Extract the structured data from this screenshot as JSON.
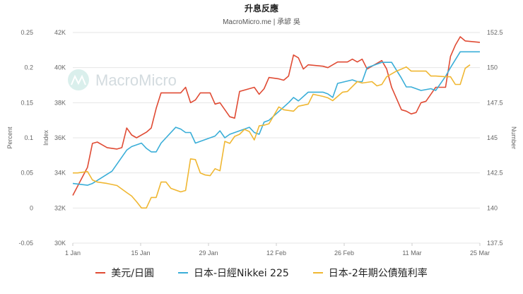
{
  "chart_data": {
    "type": "line",
    "title": "升息反應",
    "subtitle": "MacroMicro.me | 承諺 吳",
    "watermark": "MacroMicro",
    "legend_position": "bottom",
    "grid": true,
    "x_ticks": [
      "1 Jan",
      "15 Jan",
      "29 Jan",
      "12 Feb",
      "26 Feb",
      "11 Mar",
      "25 Mar"
    ],
    "axes": {
      "percent": {
        "label": "Percent",
        "ticks": [
          "-0.05",
          "0",
          "0.05",
          "0.1",
          "0.15",
          "0.2",
          "0.25"
        ],
        "range": [
          -0.05,
          0.25
        ]
      },
      "index": {
        "label": "Index",
        "ticks": [
          "30K",
          "32K",
          "34K",
          "36K",
          "38K",
          "40K",
          "42K"
        ],
        "range": [
          30000,
          42000
        ]
      },
      "number": {
        "label": "Number",
        "ticks": [
          "137.5",
          "140",
          "142.5",
          "145",
          "147.5",
          "150",
          "152.5"
        ],
        "range": [
          137.5,
          152.5
        ]
      }
    },
    "series": [
      {
        "name": "美元/日圓",
        "axis": "number",
        "color": "#e04b34",
        "points": [
          [
            "2021-01-01",
            140.9
          ],
          [
            "2021-01-04",
            142.9
          ],
          [
            "2021-01-05",
            144.6
          ],
          [
            "2021-01-06",
            144.7
          ],
          [
            "2021-01-07",
            144.5
          ],
          [
            "2021-01-08",
            144.3
          ],
          [
            "2021-01-10",
            144.2
          ],
          [
            "2021-01-11",
            144.3
          ],
          [
            "2021-01-12",
            145.7
          ],
          [
            "2021-01-13",
            145.2
          ],
          [
            "2021-01-14",
            145.0
          ],
          [
            "2021-01-16",
            145.4
          ],
          [
            "2021-01-17",
            145.7
          ],
          [
            "2021-01-18",
            147.1
          ],
          [
            "2021-01-19",
            148.2
          ],
          [
            "2021-01-23",
            148.2
          ],
          [
            "2021-01-24",
            148.6
          ],
          [
            "2021-01-25",
            147.5
          ],
          [
            "2021-01-26",
            147.7
          ],
          [
            "2021-01-27",
            148.2
          ],
          [
            "2021-01-29",
            148.2
          ],
          [
            "2021-01-30",
            147.4
          ],
          [
            "2021-01-31",
            147.5
          ],
          [
            "2021-02-02",
            146.5
          ],
          [
            "2021-02-03",
            146.4
          ],
          [
            "2021-02-04",
            148.3
          ],
          [
            "2021-02-06",
            148.5
          ],
          [
            "2021-02-07",
            148.6
          ],
          [
            "2021-02-08",
            148.1
          ],
          [
            "2021-02-09",
            148.5
          ],
          [
            "2021-02-10",
            149.3
          ],
          [
            "2021-02-12",
            149.2
          ],
          [
            "2021-02-13",
            149.1
          ],
          [
            "2021-02-14",
            149.4
          ],
          [
            "2021-02-15",
            150.9
          ],
          [
            "2021-02-16",
            150.7
          ],
          [
            "2021-02-17",
            149.9
          ],
          [
            "2021-02-18",
            150.2
          ],
          [
            "2021-02-21",
            150.1
          ],
          [
            "2021-02-22",
            150.0
          ],
          [
            "2021-02-24",
            150.4
          ],
          [
            "2021-02-26",
            150.4
          ],
          [
            "2021-02-27",
            150.6
          ],
          [
            "2021-02-28",
            150.4
          ],
          [
            "2021-03-01",
            150.6
          ],
          [
            "2021-03-02",
            149.9
          ],
          [
            "2021-03-05",
            150.5
          ],
          [
            "2021-03-06",
            149.9
          ],
          [
            "2021-03-07",
            148.6
          ],
          [
            "2021-03-09",
            147.0
          ],
          [
            "2021-03-10",
            146.9
          ],
          [
            "2021-03-11",
            146.7
          ],
          [
            "2021-03-12",
            146.8
          ],
          [
            "2021-03-13",
            147.5
          ],
          [
            "2021-03-14",
            147.6
          ],
          [
            "2021-03-15",
            148.1
          ],
          [
            "2021-03-16",
            148.6
          ],
          [
            "2021-03-18",
            148.6
          ],
          [
            "2021-03-19",
            150.8
          ],
          [
            "2021-03-20",
            151.6
          ],
          [
            "2021-03-21",
            152.2
          ],
          [
            "2021-03-22",
            151.9
          ],
          [
            "2021-03-25",
            151.8
          ]
        ]
      },
      {
        "name": "日本-日經Nikkei 225",
        "axis": "index",
        "color": "#3aaed8",
        "points": [
          [
            "2021-01-01",
            33.4
          ],
          [
            "2021-01-04",
            33.3
          ],
          [
            "2021-01-05",
            33.4
          ],
          [
            "2021-01-09",
            34.1
          ],
          [
            "2021-01-12",
            35.3
          ],
          [
            "2021-01-13",
            35.5
          ],
          [
            "2021-01-15",
            35.7
          ],
          [
            "2021-01-16",
            35.4
          ],
          [
            "2021-01-17",
            35.2
          ],
          [
            "2021-01-18",
            35.2
          ],
          [
            "2021-01-19",
            35.7
          ],
          [
            "2021-01-22",
            36.6
          ],
          [
            "2021-01-23",
            36.5
          ],
          [
            "2021-01-24",
            36.3
          ],
          [
            "2021-01-25",
            36.3
          ],
          [
            "2021-01-26",
            35.7
          ],
          [
            "2021-01-29",
            36.0
          ],
          [
            "2021-01-30",
            36.1
          ],
          [
            "2021-01-31",
            36.4
          ],
          [
            "2021-02-01",
            36.0
          ],
          [
            "2021-02-02",
            36.2
          ],
          [
            "2021-02-05",
            36.5
          ],
          [
            "2021-02-06",
            36.6
          ],
          [
            "2021-02-07",
            36.3
          ],
          [
            "2021-02-08",
            36.2
          ],
          [
            "2021-02-09",
            36.9
          ],
          [
            "2021-02-10",
            37.0
          ],
          [
            "2021-02-14",
            38.0
          ],
          [
            "2021-02-15",
            38.3
          ],
          [
            "2021-02-16",
            38.1
          ],
          [
            "2021-02-18",
            38.6
          ],
          [
            "2021-02-21",
            38.6
          ],
          [
            "2021-02-22",
            38.5
          ],
          [
            "2021-02-23",
            38.3
          ],
          [
            "2021-02-24",
            39.1
          ],
          [
            "2021-02-27",
            39.3
          ],
          [
            "2021-02-28",
            39.2
          ],
          [
            "2021-03-01",
            39.2
          ],
          [
            "2021-03-02",
            40.0
          ],
          [
            "2021-03-04",
            40.2
          ],
          [
            "2021-03-05",
            40.3
          ],
          [
            "2021-03-07",
            40.3
          ],
          [
            "2021-03-09",
            39.4
          ],
          [
            "2021-03-10",
            38.9
          ],
          [
            "2021-03-11",
            38.9
          ],
          [
            "2021-03-13",
            38.7
          ],
          [
            "2021-03-15",
            38.8
          ],
          [
            "2021-03-16",
            38.7
          ],
          [
            "2021-03-18",
            39.5
          ],
          [
            "2021-03-19",
            40.0
          ],
          [
            "2021-03-21",
            40.9
          ],
          [
            "2021-03-22",
            40.9
          ],
          [
            "2021-03-25",
            40.9
          ]
        ]
      },
      {
        "name": "日本-2年期公債殖利率",
        "axis": "percent",
        "color": "#f0b732",
        "points": [
          [
            "2021-01-01",
            0.05
          ],
          [
            "2021-01-02",
            0.05
          ],
          [
            "2021-01-04",
            0.052
          ],
          [
            "2021-01-05",
            0.04
          ],
          [
            "2021-01-06",
            0.037
          ],
          [
            "2021-01-08",
            0.035
          ],
          [
            "2021-01-10",
            0.032
          ],
          [
            "2021-01-12",
            0.022
          ],
          [
            "2021-01-13",
            0.017
          ],
          [
            "2021-01-14",
            0.009
          ],
          [
            "2021-01-15",
            0.0
          ],
          [
            "2021-01-16",
            0.0
          ],
          [
            "2021-01-17",
            0.015
          ],
          [
            "2021-01-18",
            0.015
          ],
          [
            "2021-01-19",
            0.037
          ],
          [
            "2021-01-20",
            0.037
          ],
          [
            "2021-01-21",
            0.028
          ],
          [
            "2021-01-23",
            0.023
          ],
          [
            "2021-01-24",
            0.025
          ],
          [
            "2021-01-25",
            0.07
          ],
          [
            "2021-01-26",
            0.069
          ],
          [
            "2021-01-27",
            0.05
          ],
          [
            "2021-01-28",
            0.047
          ],
          [
            "2021-01-29",
            0.046
          ],
          [
            "2021-01-30",
            0.056
          ],
          [
            "2021-01-31",
            0.053
          ],
          [
            "2021-02-01",
            0.095
          ],
          [
            "2021-02-02",
            0.092
          ],
          [
            "2021-02-03",
            0.102
          ],
          [
            "2021-02-04",
            0.105
          ],
          [
            "2021-02-05",
            0.112
          ],
          [
            "2021-02-06",
            0.109
          ],
          [
            "2021-02-07",
            0.097
          ],
          [
            "2021-02-08",
            0.117
          ],
          [
            "2021-02-09",
            0.118
          ],
          [
            "2021-02-10",
            0.12
          ],
          [
            "2021-02-12",
            0.144
          ],
          [
            "2021-02-13",
            0.14
          ],
          [
            "2021-02-15",
            0.138
          ],
          [
            "2021-02-16",
            0.145
          ],
          [
            "2021-02-18",
            0.148
          ],
          [
            "2021-02-19",
            0.162
          ],
          [
            "2021-02-21",
            0.159
          ],
          [
            "2021-02-22",
            0.157
          ],
          [
            "2021-02-23",
            0.153
          ],
          [
            "2021-02-25",
            0.165
          ],
          [
            "2021-02-26",
            0.166
          ],
          [
            "2021-02-28",
            0.18
          ],
          [
            "2021-03-01",
            0.178
          ],
          [
            "2021-03-03",
            0.18
          ],
          [
            "2021-03-04",
            0.174
          ],
          [
            "2021-03-05",
            0.176
          ],
          [
            "2021-03-06",
            0.187
          ],
          [
            "2021-03-08",
            0.195
          ],
          [
            "2021-03-09",
            0.198
          ],
          [
            "2021-03-10",
            0.201
          ],
          [
            "2021-03-11",
            0.195
          ],
          [
            "2021-03-14",
            0.195
          ],
          [
            "2021-03-15",
            0.188
          ],
          [
            "2021-03-16",
            0.188
          ],
          [
            "2021-03-18",
            0.187
          ],
          [
            "2021-03-19",
            0.187
          ],
          [
            "2021-03-20",
            0.176
          ],
          [
            "2021-03-21",
            0.176
          ],
          [
            "2021-03-22",
            0.199
          ],
          [
            "2021-03-23",
            0.204
          ]
        ]
      }
    ]
  }
}
